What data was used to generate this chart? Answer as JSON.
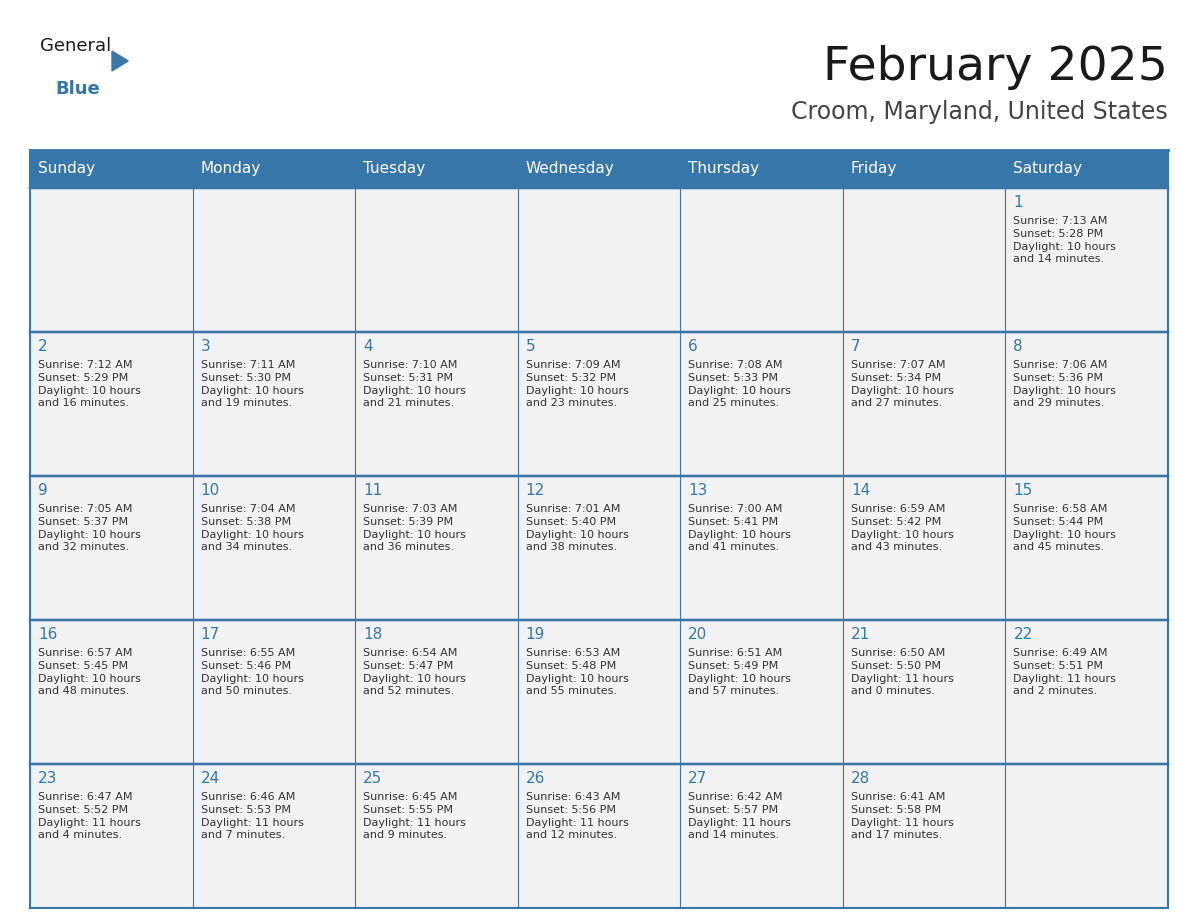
{
  "title": "February 2025",
  "subtitle": "Croom, Maryland, United States",
  "days_of_week": [
    "Sunday",
    "Monday",
    "Tuesday",
    "Wednesday",
    "Thursday",
    "Friday",
    "Saturday"
  ],
  "header_bg": "#3776a8",
  "header_text": "#ffffff",
  "cell_bg": "#f2f2f2",
  "cell_border": "#3776a8",
  "day_number_color": "#3776a8",
  "cell_text_color": "#333333",
  "title_color": "#1a1a1a",
  "subtitle_color": "#444444",
  "logo_general_color": "#1a1a1a",
  "logo_blue_color": "#3776a8",
  "calendar": [
    [
      null,
      null,
      null,
      null,
      null,
      null,
      {
        "day": 1,
        "sunrise": "7:13 AM",
        "sunset": "5:28 PM",
        "daylight": "10 hours\nand 14 minutes."
      }
    ],
    [
      {
        "day": 2,
        "sunrise": "7:12 AM",
        "sunset": "5:29 PM",
        "daylight": "10 hours\nand 16 minutes."
      },
      {
        "day": 3,
        "sunrise": "7:11 AM",
        "sunset": "5:30 PM",
        "daylight": "10 hours\nand 19 minutes."
      },
      {
        "day": 4,
        "sunrise": "7:10 AM",
        "sunset": "5:31 PM",
        "daylight": "10 hours\nand 21 minutes."
      },
      {
        "day": 5,
        "sunrise": "7:09 AM",
        "sunset": "5:32 PM",
        "daylight": "10 hours\nand 23 minutes."
      },
      {
        "day": 6,
        "sunrise": "7:08 AM",
        "sunset": "5:33 PM",
        "daylight": "10 hours\nand 25 minutes."
      },
      {
        "day": 7,
        "sunrise": "7:07 AM",
        "sunset": "5:34 PM",
        "daylight": "10 hours\nand 27 minutes."
      },
      {
        "day": 8,
        "sunrise": "7:06 AM",
        "sunset": "5:36 PM",
        "daylight": "10 hours\nand 29 minutes."
      }
    ],
    [
      {
        "day": 9,
        "sunrise": "7:05 AM",
        "sunset": "5:37 PM",
        "daylight": "10 hours\nand 32 minutes."
      },
      {
        "day": 10,
        "sunrise": "7:04 AM",
        "sunset": "5:38 PM",
        "daylight": "10 hours\nand 34 minutes."
      },
      {
        "day": 11,
        "sunrise": "7:03 AM",
        "sunset": "5:39 PM",
        "daylight": "10 hours\nand 36 minutes."
      },
      {
        "day": 12,
        "sunrise": "7:01 AM",
        "sunset": "5:40 PM",
        "daylight": "10 hours\nand 38 minutes."
      },
      {
        "day": 13,
        "sunrise": "7:00 AM",
        "sunset": "5:41 PM",
        "daylight": "10 hours\nand 41 minutes."
      },
      {
        "day": 14,
        "sunrise": "6:59 AM",
        "sunset": "5:42 PM",
        "daylight": "10 hours\nand 43 minutes."
      },
      {
        "day": 15,
        "sunrise": "6:58 AM",
        "sunset": "5:44 PM",
        "daylight": "10 hours\nand 45 minutes."
      }
    ],
    [
      {
        "day": 16,
        "sunrise": "6:57 AM",
        "sunset": "5:45 PM",
        "daylight": "10 hours\nand 48 minutes."
      },
      {
        "day": 17,
        "sunrise": "6:55 AM",
        "sunset": "5:46 PM",
        "daylight": "10 hours\nand 50 minutes."
      },
      {
        "day": 18,
        "sunrise": "6:54 AM",
        "sunset": "5:47 PM",
        "daylight": "10 hours\nand 52 minutes."
      },
      {
        "day": 19,
        "sunrise": "6:53 AM",
        "sunset": "5:48 PM",
        "daylight": "10 hours\nand 55 minutes."
      },
      {
        "day": 20,
        "sunrise": "6:51 AM",
        "sunset": "5:49 PM",
        "daylight": "10 hours\nand 57 minutes."
      },
      {
        "day": 21,
        "sunrise": "6:50 AM",
        "sunset": "5:50 PM",
        "daylight": "11 hours\nand 0 minutes."
      },
      {
        "day": 22,
        "sunrise": "6:49 AM",
        "sunset": "5:51 PM",
        "daylight": "11 hours\nand 2 minutes."
      }
    ],
    [
      {
        "day": 23,
        "sunrise": "6:47 AM",
        "sunset": "5:52 PM",
        "daylight": "11 hours\nand 4 minutes."
      },
      {
        "day": 24,
        "sunrise": "6:46 AM",
        "sunset": "5:53 PM",
        "daylight": "11 hours\nand 7 minutes."
      },
      {
        "day": 25,
        "sunrise": "6:45 AM",
        "sunset": "5:55 PM",
        "daylight": "11 hours\nand 9 minutes."
      },
      {
        "day": 26,
        "sunrise": "6:43 AM",
        "sunset": "5:56 PM",
        "daylight": "11 hours\nand 12 minutes."
      },
      {
        "day": 27,
        "sunrise": "6:42 AM",
        "sunset": "5:57 PM",
        "daylight": "11 hours\nand 14 minutes."
      },
      {
        "day": 28,
        "sunrise": "6:41 AM",
        "sunset": "5:58 PM",
        "daylight": "11 hours\nand 17 minutes."
      },
      null
    ]
  ],
  "logo_general_fontsize": 13,
  "logo_blue_fontsize": 13,
  "title_fontsize": 34,
  "subtitle_fontsize": 17,
  "header_fontsize": 11,
  "day_num_fontsize": 11,
  "cell_text_fontsize": 8
}
